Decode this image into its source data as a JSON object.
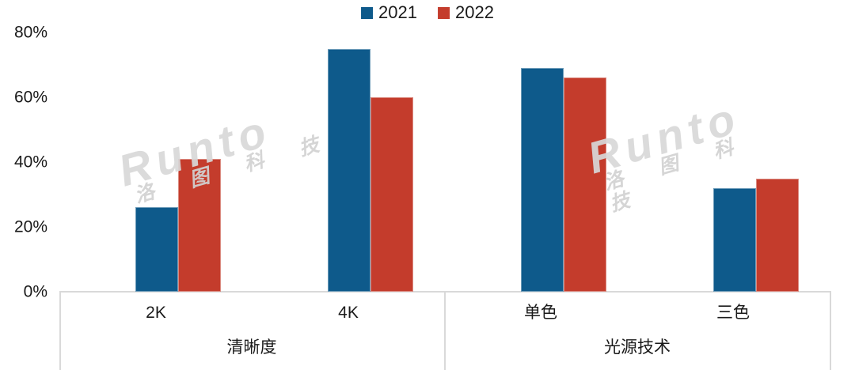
{
  "chart_data": {
    "type": "bar",
    "title": "",
    "legend_position": "top",
    "grid": false,
    "unit": "%",
    "ylim": [
      0,
      80
    ],
    "yticks": [
      "0%",
      "20%",
      "40%",
      "60%",
      "80%"
    ],
    "categories": [
      "2K",
      "4K",
      "单色",
      "三色"
    ],
    "category_groups": [
      {
        "label": "清晰度",
        "categories": [
          "2K",
          "4K"
        ]
      },
      {
        "label": "光源技术",
        "categories": [
          "单色",
          "三色"
        ]
      }
    ],
    "series": [
      {
        "name": "2021",
        "color": "#0E5A8B",
        "values": [
          26,
          75,
          69,
          32
        ]
      },
      {
        "name": "2022",
        "color": "#C43C2C",
        "values": [
          41,
          60,
          66,
          35
        ]
      }
    ]
  },
  "watermark": {
    "brand": "Runto",
    "cn": "洛 图 科 技"
  },
  "colors": {
    "series_2021": "#0E5A8B",
    "series_2022": "#C43C2C",
    "axis_line": "#D9D9D9",
    "text": "#1A1A1A",
    "watermark": "#D8D8D8"
  }
}
